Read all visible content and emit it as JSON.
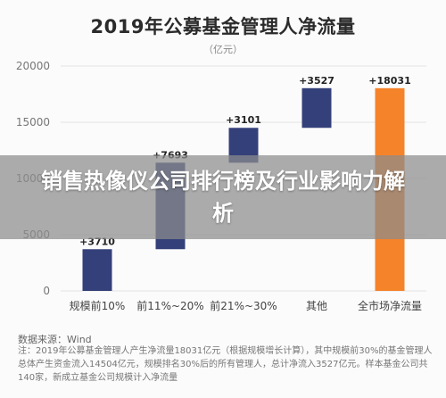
{
  "banner": {
    "text": "销售热像仪公司排行榜及行业影响力解析"
  },
  "footer": {
    "source": "数据来源：Wind",
    "note": "注：2019年公募基金管理人产生净流量18031亿元（根据规模增长计算），其中规模前30%的基金管理人总体产生资金流入14504亿元，规模排名30%后的所有管理人，总计净流入3527亿元。样本基金公司共140家，新成立基金公司规模计入净流量"
  },
  "chart_data": {
    "type": "bar",
    "subtype": "waterfall",
    "title": "2019年公募基金管理人净流量",
    "subtitle": "（亿元）",
    "categories": [
      "规模前10%",
      "前11%~20%",
      "前21%~30%",
      "其他",
      "全市场净流量"
    ],
    "series": [
      {
        "values": [
          3710,
          7693,
          3101,
          3527,
          18031
        ],
        "data_labels": [
          "+3710",
          "+7693",
          "+3101",
          "+3527",
          "+18031"
        ],
        "starts": [
          0,
          3710,
          11403,
          14504,
          0
        ]
      }
    ],
    "colors": {
      "increment": "#34407a",
      "total": "#f5832a",
      "grid": "#e3e3e3"
    },
    "ylim": [
      0,
      20000
    ],
    "yticks": [
      0,
      5000,
      10000,
      15000,
      20000
    ],
    "grid": true
  }
}
